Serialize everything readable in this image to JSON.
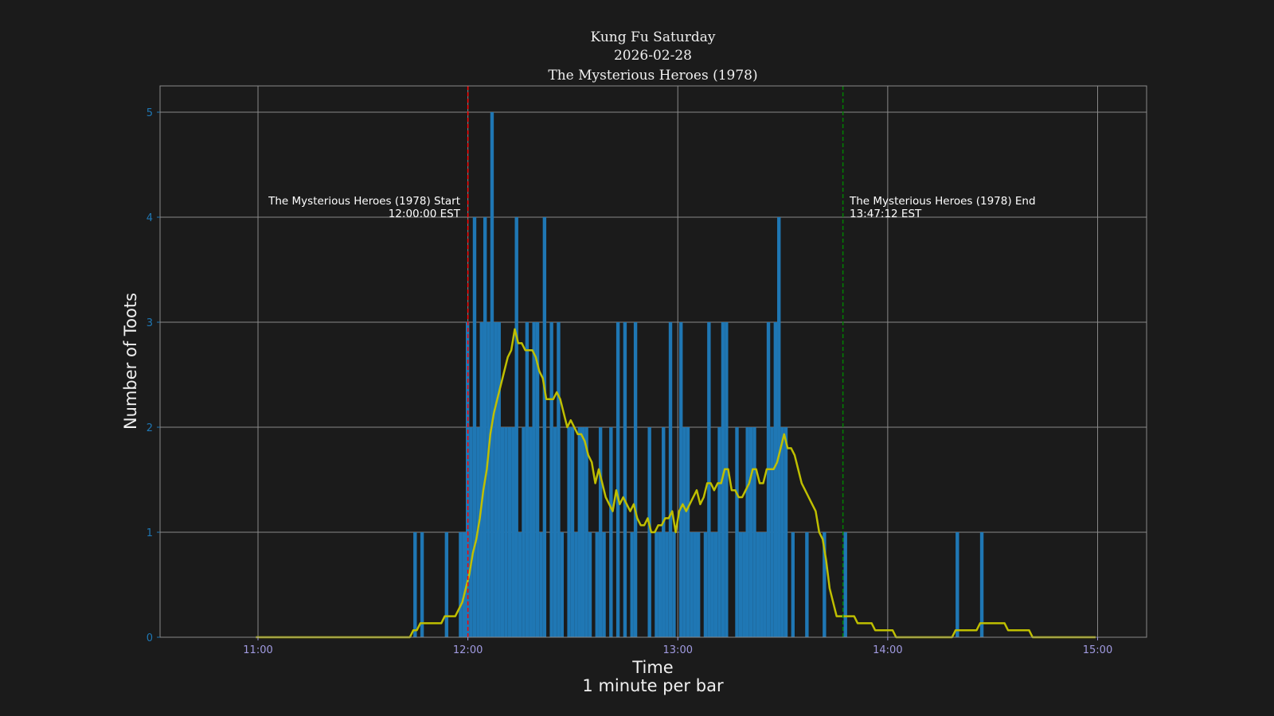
{
  "chart_data": {
    "type": "bar",
    "title_lines": [
      "Kung Fu Saturday",
      "2026-02-28",
      "The Mysterious Heroes (1978)"
    ],
    "xlabel": "Time",
    "xlabel_sub": "1 minute per bar",
    "ylabel": "Number of Toots",
    "ylim": [
      0,
      5.25
    ],
    "xlim": [
      "10:32",
      "15:14"
    ],
    "yticks": [
      "0",
      "1",
      "2",
      "3",
      "4",
      "5"
    ],
    "xticks": [
      "11:00",
      "12:00",
      "13:00",
      "14:00",
      "15:00"
    ],
    "grid": true,
    "bar_interval": "1 minute",
    "bars_start": "11:45",
    "counts": [
      1,
      0,
      1,
      0,
      0,
      0,
      0,
      0,
      0,
      1,
      0,
      0,
      0,
      1,
      1,
      3,
      2,
      4,
      2,
      3,
      4,
      3,
      5,
      3,
      3,
      2,
      2,
      2,
      2,
      4,
      1,
      2,
      3,
      2,
      3,
      3,
      1,
      4,
      0,
      3,
      2,
      3,
      1,
      0,
      2,
      2,
      1,
      2,
      2,
      2,
      1,
      0,
      1,
      2,
      1,
      0,
      2,
      0,
      3,
      0,
      3,
      0,
      1,
      3,
      0,
      0,
      0,
      2,
      0,
      1,
      1,
      2,
      1,
      3,
      1,
      0,
      3,
      2,
      2,
      1,
      1,
      1,
      0,
      1,
      3,
      1,
      1,
      2,
      3,
      3,
      0,
      0,
      2,
      1,
      1,
      2,
      2,
      2,
      1,
      1,
      1,
      3,
      2,
      3,
      4,
      2,
      2,
      0,
      1,
      0,
      0,
      0,
      1,
      0,
      0,
      0,
      0,
      1,
      0,
      0,
      0,
      0,
      0,
      1,
      0,
      0,
      0,
      0,
      0,
      0,
      0,
      0,
      0,
      0,
      0,
      0,
      0,
      0,
      0,
      0,
      0,
      0,
      0,
      0,
      0,
      0,
      0,
      0,
      0,
      0,
      0,
      0,
      0,
      0,
      0,
      1,
      0,
      0,
      0,
      0,
      0,
      0,
      1
    ],
    "rolling_mean": {
      "window_minutes": 15,
      "range": [
        "11:00",
        "15:00"
      ],
      "color": "#bfbf00"
    },
    "annotations": [
      {
        "name": "start",
        "time": "12:00:00",
        "lines": [
          "The Mysterious Heroes (1978) Start",
          "12:00:00 EST"
        ],
        "color": "#ff0000"
      },
      {
        "name": "end",
        "time": "13:47:12",
        "lines": [
          "The Mysterious Heroes (1978) End",
          "13:47:12 EST"
        ],
        "color": "#008000"
      }
    ],
    "colors": {
      "background": "#1b1b1b",
      "bars": "#1f77b4",
      "grid": "#8a8a8a",
      "ytick": "#1f77b4",
      "xtick": "#a09ae0"
    }
  }
}
